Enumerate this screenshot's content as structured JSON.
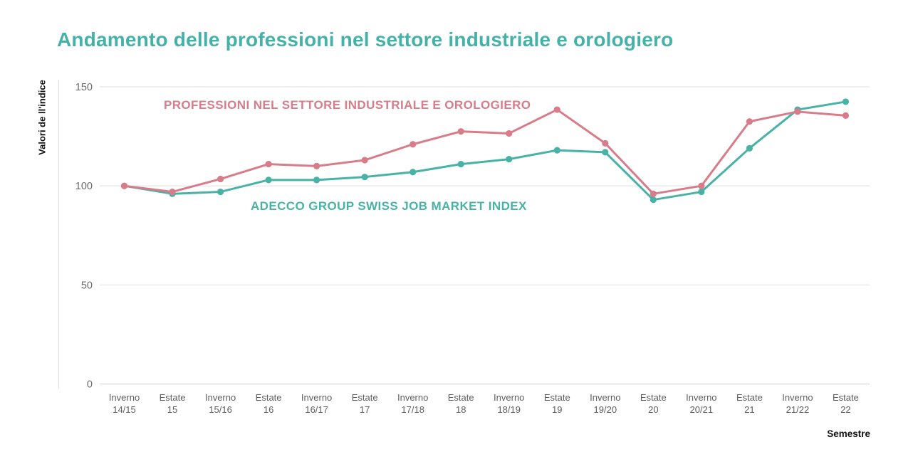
{
  "title": "Andamento delle professioni nel settore industriale e orologiero",
  "colors": {
    "title": "#45b2a8",
    "industrial_line": "#d87c8a",
    "adecco_line": "#49b2a7",
    "gridline": "#e8e8e8",
    "zero_line": "#dcdcdc",
    "left_axis_line": "#e0e0e0",
    "y_tick_text": "#6b6b6b",
    "x_tick_text": "#5e5e5e"
  },
  "y_axis": {
    "label": "Valori de ll'indice"
  },
  "x_axis": {
    "label": "Semestre"
  },
  "series_labels": {
    "industrial": "PROFESSIONI NEL SETTORE INDUSTRIALE E OROLOGIERO",
    "adecco": "ADECCO GROUP SWISS JOB MARKET INDEX"
  },
  "chart_data": {
    "type": "line",
    "title": "Andamento delle professioni nel settore industriale e orologiero",
    "xlabel": "Semestre",
    "ylabel": "Valori de ll'indice",
    "ylim": [
      0,
      150
    ],
    "yticks": [
      150,
      100,
      50,
      0
    ],
    "grid": true,
    "legend_position": "inline-labels",
    "categories": [
      [
        "Inverno",
        "14/15"
      ],
      [
        "Estate",
        "15"
      ],
      [
        "Inverno",
        "15/16"
      ],
      [
        "Estate",
        "16"
      ],
      [
        "Inverno",
        "16/17"
      ],
      [
        "Estate",
        "17"
      ],
      [
        "Inverno",
        "17/18"
      ],
      [
        "Estate",
        "18"
      ],
      [
        "Inverno",
        "18/19"
      ],
      [
        "Estate",
        "19"
      ],
      [
        "Inverno",
        "19/20"
      ],
      [
        "Estate",
        "20"
      ],
      [
        "Inverno",
        "20/21"
      ],
      [
        "Estate",
        "21"
      ],
      [
        "Inverno",
        "21/22"
      ],
      [
        "Estate",
        "22"
      ]
    ],
    "series": [
      {
        "name": "ADECCO GROUP SWISS JOB MARKET INDEX",
        "color": "#49b2a7",
        "values": [
          100,
          96,
          97,
          103,
          103,
          104.5,
          107,
          111,
          113.5,
          118,
          117,
          93,
          97,
          119,
          138.5,
          142.5
        ]
      },
      {
        "name": "PROFESSIONI NEL SETTORE INDUSTRIALE E OROLOGIERO",
        "color": "#d87c8a",
        "values": [
          100,
          97,
          103.5,
          111,
          110,
          113,
          121,
          127.5,
          126.5,
          138.5,
          121.5,
          96,
          100,
          132.5,
          137.5,
          135.5
        ]
      }
    ]
  }
}
